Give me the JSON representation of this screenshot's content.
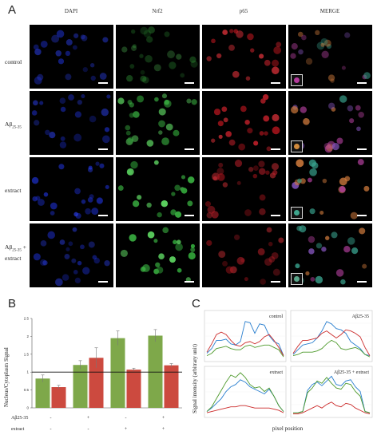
{
  "panelA": {
    "letter": "A",
    "columns": [
      "DAPI",
      "Nrf2",
      "p65",
      "MERGE"
    ],
    "rows": [
      {
        "label": "control",
        "sub": "",
        "line2": ""
      },
      {
        "label": "Aβ",
        "sub": "25-35",
        "line2": ""
      },
      {
        "label": "extract",
        "sub": "",
        "line2": ""
      },
      {
        "label": "Aβ",
        "sub": "25-35",
        "suffix": " +",
        "line2": "extract"
      }
    ]
  },
  "panelB": {
    "letter": "B",
    "ylabel": "Nucleus/Cytoplasm Signal",
    "row1_label": "Aβ25-35",
    "row2_label": "extract",
    "row1_signs": [
      "-",
      "+",
      "-",
      "+"
    ],
    "row2_signs": [
      "-",
      "-",
      "+",
      "+"
    ],
    "colors": {
      "green": "#7ea84a",
      "red": "#cc4a3f"
    }
  },
  "panelC": {
    "letter": "C",
    "ylabel": "Signal intensity (arbitrary unit)",
    "xlabel": "pixel position",
    "subplots": [
      {
        "title": "control"
      },
      {
        "title": "Aβ25-35"
      },
      {
        "title": "extract"
      },
      {
        "title": "Aβ25-35 + extract"
      }
    ],
    "colors": {
      "blue": "#2a7fcf",
      "green": "#4e9a2c",
      "red": "#cc2b2b"
    }
  },
  "chart_data": [
    {
      "type": "bar",
      "categories": [
        "control",
        "Aβ25-35",
        "extract",
        "Aβ25-35 + extract"
      ],
      "series": [
        {
          "name": "Nrf2",
          "values": [
            0.82,
            1.2,
            1.95,
            2.02
          ],
          "errors": [
            0.1,
            0.12,
            0.2,
            0.17
          ]
        },
        {
          "name": "p65",
          "values": [
            0.58,
            1.4,
            1.07,
            1.19
          ],
          "errors": [
            0.05,
            0.28,
            0.04,
            0.05
          ]
        }
      ],
      "reference_line": 1,
      "ylim": [
        0,
        2.5
      ],
      "yticks": [
        "0",
        "0.5",
        "1",
        "1.5",
        "2",
        "2.5"
      ],
      "ylabel": "Nucleus/Cytoplasm Signal"
    },
    {
      "type": "line",
      "subplots": [
        {
          "title": "control",
          "series": [
            {
              "name": "blue",
              "values": [
                0.5,
                0.9,
                1.6,
                1.6,
                1.7,
                1.3,
                1.2,
                1.5,
                3.2,
                3.1,
                2.2,
                3.0,
                2.9,
                2.0,
                1.5,
                1.3,
                0.3
              ]
            },
            {
              "name": "green",
              "values": [
                0.3,
                0.5,
                0.9,
                1.0,
                1.1,
                0.9,
                0.8,
                0.8,
                1.1,
                1.2,
                1.0,
                1.1,
                1.2,
                1.2,
                1.0,
                0.8,
                0.2
              ]
            },
            {
              "name": "red",
              "values": [
                0.6,
                1.3,
                2.1,
                2.3,
                2.1,
                1.6,
                1.2,
                1.1,
                1.4,
                1.5,
                1.3,
                1.5,
                1.9,
                2.1,
                1.6,
                1.0,
                0.3
              ]
            }
          ]
        },
        {
          "title": "Aβ25-35",
          "series": [
            {
              "name": "blue",
              "values": [
                0.4,
                0.8,
                1.2,
                1.3,
                1.4,
                1.8,
                2.4,
                3.2,
                3.0,
                2.6,
                2.5,
                2.2,
                1.5,
                1.2,
                0.9,
                0.4,
                0.3
              ]
            },
            {
              "name": "green",
              "values": [
                0.3,
                0.4,
                0.6,
                0.6,
                0.6,
                0.7,
                0.9,
                1.3,
                1.6,
                1.4,
                0.9,
                0.8,
                0.9,
                1.0,
                0.8,
                0.4,
                0.2
              ]
            },
            {
              "name": "red",
              "values": [
                0.5,
                1.1,
                1.6,
                1.6,
                1.7,
                1.8,
                2.2,
                2.4,
                2.1,
                1.8,
                2.1,
                2.5,
                2.4,
                2.2,
                1.9,
                1.0,
                0.3
              ]
            }
          ]
        },
        {
          "title": "extract",
          "series": [
            {
              "name": "blue",
              "values": [
                0.3,
                0.6,
                1.0,
                1.4,
                2.0,
                2.4,
                2.6,
                3.0,
                2.8,
                2.4,
                2.2,
                2.0,
                1.8,
                2.2,
                1.6,
                0.8,
                0.3
              ]
            },
            {
              "name": "green",
              "values": [
                0.3,
                0.7,
                1.4,
                2.1,
                2.8,
                3.4,
                3.2,
                3.6,
                3.2,
                2.6,
                2.3,
                2.4,
                2.0,
                2.3,
                1.6,
                0.8,
                0.3
              ]
            },
            {
              "name": "red",
              "values": [
                0.2,
                0.3,
                0.4,
                0.5,
                0.6,
                0.7,
                0.7,
                0.8,
                0.8,
                0.7,
                0.6,
                0.6,
                0.6,
                0.6,
                0.5,
                0.4,
                0.2
              ]
            }
          ]
        },
        {
          "title": "Aβ25-35 + extract",
          "series": [
            {
              "name": "blue",
              "values": [
                0.2,
                0.2,
                0.3,
                2.1,
                2.6,
                2.8,
                2.5,
                2.9,
                3.3,
                2.6,
                2.5,
                2.9,
                3.0,
                2.4,
                2.0,
                0.3,
                0.2
              ]
            },
            {
              "name": "green",
              "values": [
                0.2,
                0.2,
                0.3,
                1.9,
                2.3,
                2.9,
                2.7,
                3.2,
                2.7,
                2.3,
                2.2,
                2.7,
                2.6,
                2.0,
                1.6,
                0.3,
                0.2
              ]
            },
            {
              "name": "red",
              "values": [
                0.1,
                0.1,
                0.2,
                0.4,
                0.6,
                0.8,
                0.6,
                0.9,
                1.1,
                0.8,
                0.7,
                1.0,
                0.9,
                0.6,
                0.4,
                0.2,
                0.1
              ]
            }
          ]
        }
      ],
      "xlabel": "pixel position",
      "ylabel": "Signal intensity (arbitrary unit)"
    }
  ]
}
